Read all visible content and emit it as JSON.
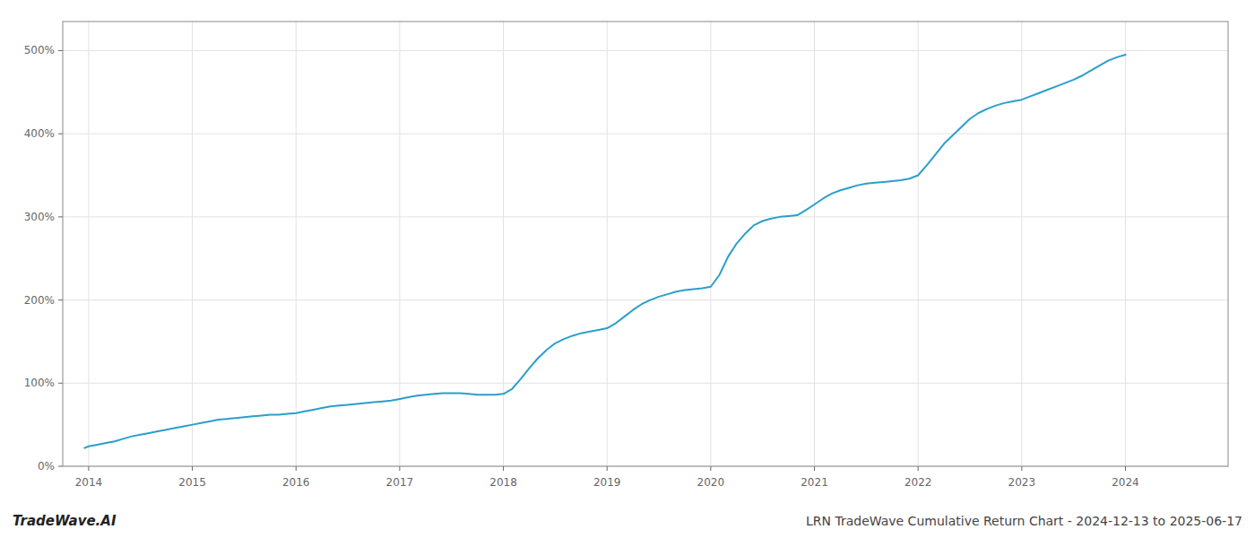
{
  "chart_data": {
    "type": "line",
    "title": "LRN TradeWave Cumulative Return Chart - 2024-12-13 to 2025-06-17",
    "annotations": [
      "TradeWave.AI"
    ],
    "color": "#2b9fcb",
    "grid": true,
    "x": [
      2013.96,
      2014.0,
      2014.083,
      2014.167,
      2014.25,
      2014.333,
      2014.417,
      2014.5,
      2014.583,
      2014.667,
      2014.75,
      2014.833,
      2014.917,
      2015.0,
      2015.083,
      2015.167,
      2015.25,
      2015.333,
      2015.417,
      2015.5,
      2015.583,
      2015.667,
      2015.75,
      2015.833,
      2015.917,
      2016.0,
      2016.083,
      2016.167,
      2016.25,
      2016.333,
      2016.417,
      2016.5,
      2016.583,
      2016.667,
      2016.75,
      2016.833,
      2016.917,
      2017.0,
      2017.083,
      2017.167,
      2017.25,
      2017.333,
      2017.417,
      2017.5,
      2017.583,
      2017.667,
      2017.75,
      2017.833,
      2017.917,
      2018.0,
      2018.083,
      2018.167,
      2018.25,
      2018.333,
      2018.417,
      2018.5,
      2018.583,
      2018.667,
      2018.75,
      2018.833,
      2018.917,
      2019.0,
      2019.083,
      2019.167,
      2019.25,
      2019.333,
      2019.417,
      2019.5,
      2019.583,
      2019.667,
      2019.75,
      2019.833,
      2019.917,
      2020.0,
      2020.083,
      2020.167,
      2020.25,
      2020.333,
      2020.417,
      2020.5,
      2020.583,
      2020.667,
      2020.75,
      2020.833,
      2020.917,
      2021.0,
      2021.083,
      2021.167,
      2021.25,
      2021.333,
      2021.417,
      2021.5,
      2021.583,
      2021.667,
      2021.75,
      2021.833,
      2021.917,
      2022.0,
      2022.083,
      2022.167,
      2022.25,
      2022.333,
      2022.417,
      2022.5,
      2022.583,
      2022.667,
      2022.75,
      2022.833,
      2022.917,
      2023.0,
      2023.083,
      2023.167,
      2023.25,
      2023.333,
      2023.417,
      2023.5,
      2023.583,
      2023.667,
      2023.75,
      2023.833,
      2023.917,
      2024.0
    ],
    "values": [
      22,
      24,
      26,
      28,
      30,
      33,
      36,
      38,
      40,
      42,
      44,
      46,
      48,
      50,
      52,
      54,
      56,
      57,
      58,
      59,
      60,
      61,
      62,
      62,
      63,
      64,
      66,
      68,
      70,
      72,
      73,
      74,
      75,
      76,
      77,
      78,
      79,
      81,
      83,
      85,
      86,
      87,
      88,
      88,
      88,
      87,
      86,
      86,
      86,
      87,
      93,
      105,
      118,
      130,
      140,
      148,
      153,
      157,
      160,
      162,
      164,
      166,
      172,
      180,
      188,
      195,
      200,
      204,
      207,
      210,
      212,
      213,
      214,
      216,
      230,
      252,
      268,
      280,
      290,
      295,
      298,
      300,
      301,
      302,
      308,
      315,
      322,
      328,
      332,
      335,
      338,
      340,
      341,
      342,
      343,
      344,
      346,
      350,
      362,
      375,
      388,
      398,
      408,
      418,
      425,
      430,
      434,
      437,
      439,
      441,
      445,
      449,
      453,
      457,
      461,
      465,
      470,
      476,
      482,
      488,
      492,
      495
    ],
    "xlim": [
      2013.75,
      2024.99
    ],
    "xticks": [
      2014,
      2015,
      2016,
      2017,
      2018,
      2019,
      2020,
      2021,
      2022,
      2023,
      2024
    ],
    "ylim": [
      0,
      535
    ],
    "yticks": [
      {
        "value": 0,
        "label": "0%"
      },
      {
        "value": 100,
        "label": "100%"
      },
      {
        "value": 200,
        "label": "200%"
      },
      {
        "value": 300,
        "label": "300%"
      },
      {
        "value": 400,
        "label": "400%"
      },
      {
        "value": 500,
        "label": "500%"
      }
    ]
  }
}
